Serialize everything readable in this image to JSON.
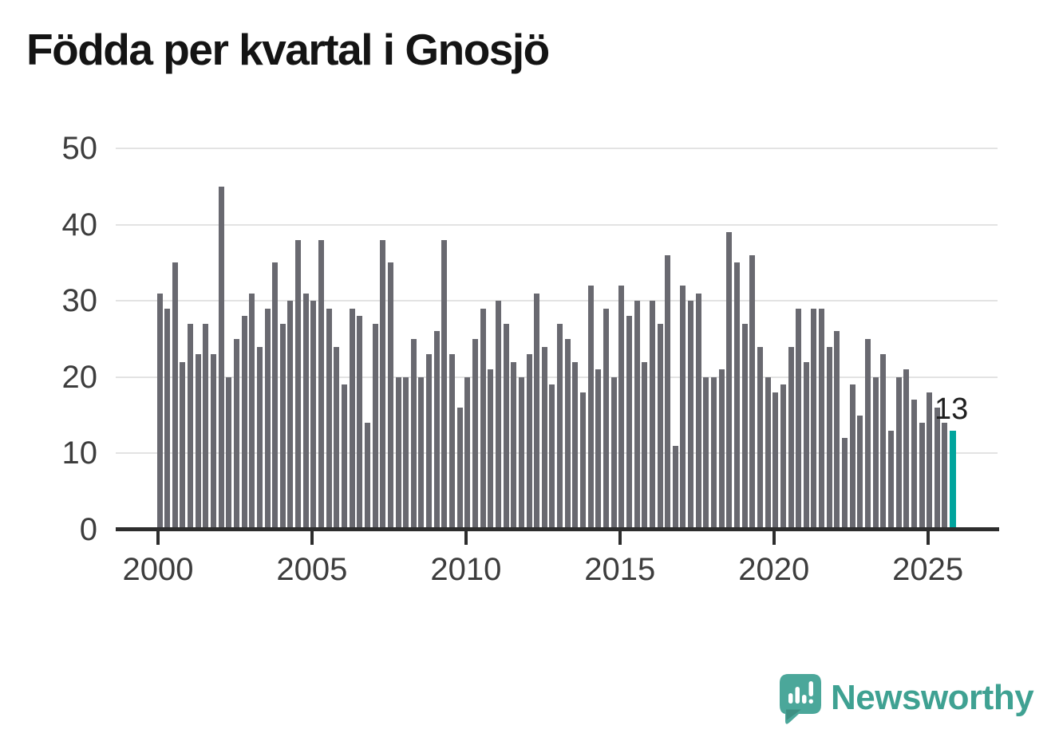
{
  "title": "Födda per kvartal i Gnosjö",
  "chart_data": {
    "type": "bar",
    "title": "Födda per kvartal i Gnosjö",
    "x_tick_labels": [
      "2000",
      "2005",
      "2010",
      "2015",
      "2020",
      "2025"
    ],
    "x_tick_indices": [
      0,
      20,
      40,
      60,
      80,
      100
    ],
    "y_ticks": [
      0,
      10,
      20,
      30,
      40,
      50
    ],
    "ylim": [
      0,
      50
    ],
    "grid": true,
    "legend": false,
    "quarters_start": "2000 Q1",
    "values": [
      31,
      29,
      35,
      22,
      27,
      23,
      27,
      23,
      45,
      20,
      25,
      28,
      31,
      24,
      29,
      35,
      27,
      30,
      38,
      31,
      30,
      38,
      29,
      24,
      19,
      29,
      28,
      14,
      27,
      38,
      35,
      20,
      20,
      25,
      20,
      23,
      26,
      38,
      23,
      16,
      20,
      25,
      29,
      21,
      30,
      27,
      22,
      20,
      23,
      31,
      24,
      19,
      27,
      25,
      22,
      18,
      32,
      21,
      29,
      20,
      32,
      28,
      30,
      22,
      30,
      27,
      36,
      11,
      32,
      30,
      31,
      20,
      20,
      21,
      39,
      35,
      27,
      36,
      24,
      20,
      18,
      19,
      24,
      29,
      22,
      29,
      29,
      24,
      26,
      12,
      19,
      15,
      25,
      20,
      23,
      13,
      20,
      21,
      17,
      14,
      18,
      16,
      14,
      13
    ],
    "bar_color": "#696970",
    "highlight_last": {
      "value": 13,
      "label": "13",
      "color": "#00a49d"
    }
  },
  "branding": {
    "wordmark": "Newsworthy"
  },
  "colors": {
    "background": "#ffffff",
    "bar": "#696970",
    "highlight": "#00a49d",
    "axis": "#2d2d2d",
    "grid": "#e3e3e3",
    "axis_label": "#3d3d3d",
    "title": "#141414",
    "brand": "#3fa192"
  }
}
